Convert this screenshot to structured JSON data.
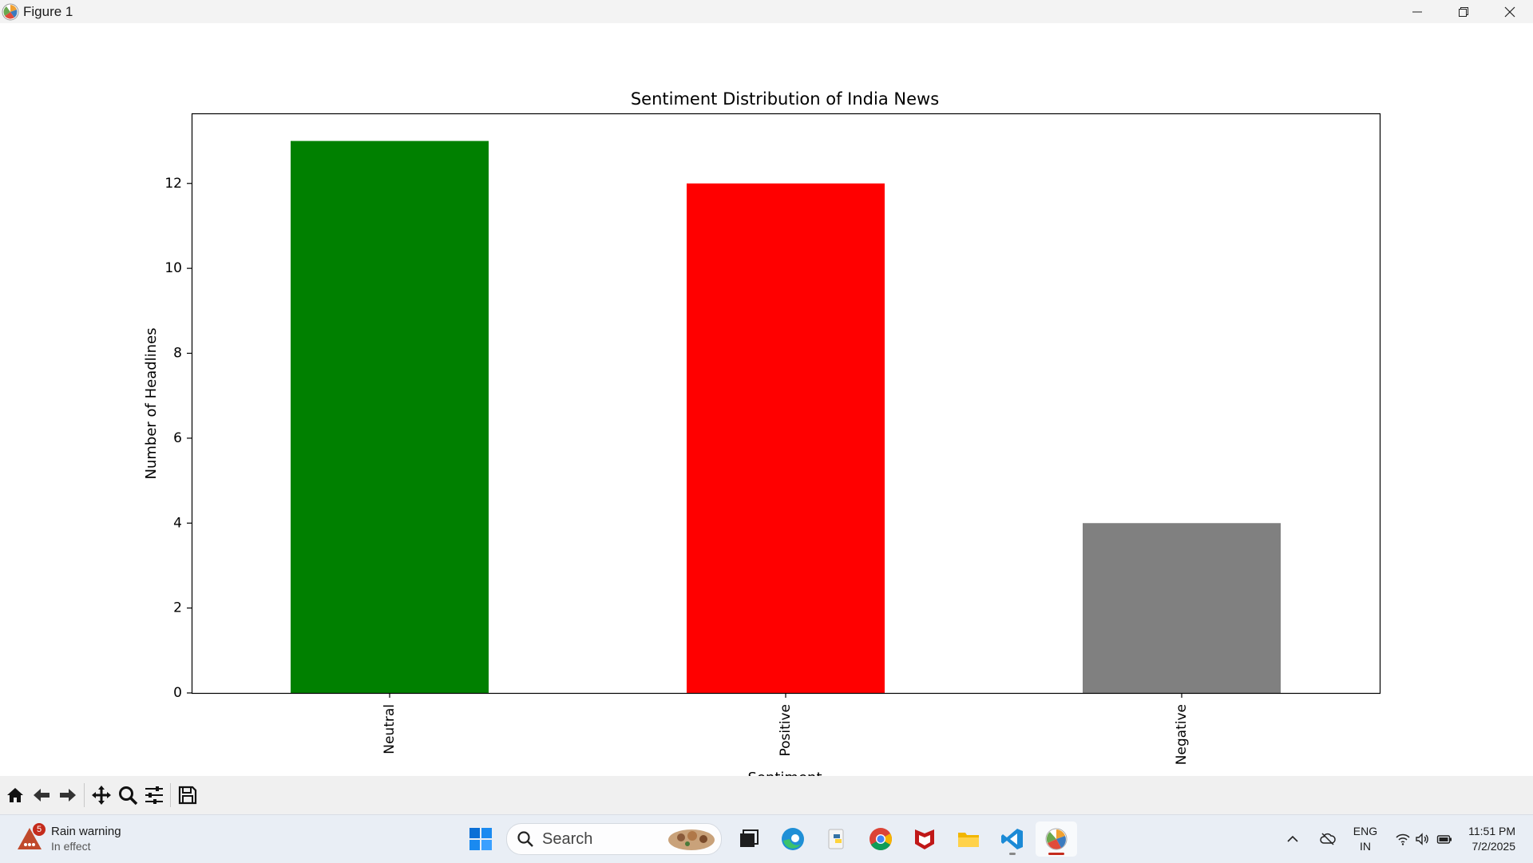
{
  "window": {
    "title": "Figure 1",
    "controls": {
      "minimize_icon": "minimize-icon",
      "maximize_icon": "restore-icon",
      "close_icon": "close-icon"
    }
  },
  "chart_data": {
    "type": "bar",
    "title": "Sentiment Distribution of India News",
    "xlabel": "Sentiment",
    "ylabel": "Number of Headlines",
    "categories": [
      "Neutral",
      "Positive",
      "Negative"
    ],
    "values": [
      13,
      12,
      4
    ],
    "colors": [
      "#008000",
      "#ff0000",
      "#808080"
    ],
    "ylim": [
      0,
      13.65
    ],
    "yticks": [
      0,
      2,
      4,
      6,
      8,
      10,
      12
    ],
    "xtick_rotation": "vertical",
    "grid": false,
    "legend": "none"
  },
  "toolbar": {
    "buttons": [
      "home-icon",
      "back-icon",
      "forward-icon",
      "pan-icon",
      "zoom-icon",
      "configure-subplots-icon",
      "save-icon"
    ]
  },
  "taskbar": {
    "weather": {
      "title": "Rain warning",
      "subtitle": "In effect",
      "badge": "5"
    },
    "search_placeholder": "Search",
    "apps": [
      "windows-start-icon",
      "task-view-icon",
      "edge-icon",
      "python-icon",
      "chrome-icon",
      "mcafee-icon",
      "file-explorer-icon",
      "vscode-icon",
      "matplotlib-figure-icon"
    ],
    "tray": {
      "lang_line1": "ENG",
      "lang_line2": "IN",
      "time": "11:51 PM",
      "date": "7/2/2025"
    }
  },
  "colors": {
    "accent": "#0078d4",
    "active_indicator": "#c42b1c"
  }
}
